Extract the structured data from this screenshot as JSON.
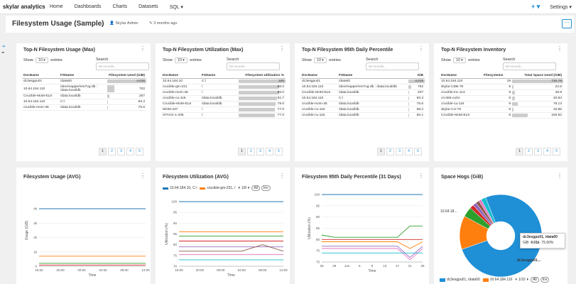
{
  "nav": {
    "logo": "skylar analytics",
    "items": [
      "Home",
      "Dashboards",
      "Charts",
      "Datasets",
      "SQL ▾"
    ],
    "plus": "+ ▾",
    "settings": "Settings ▾"
  },
  "header": {
    "title": "Filesystem Usage (Sample)",
    "owner": "Skylar Admin",
    "modified": "3 months ago"
  },
  "tables": {
    "controls": {
      "show": "Show",
      "entries_value": "10",
      "entries": "entries",
      "search": "Search",
      "search_placeholder": "50 records..."
    },
    "t1": {
      "title": "Top-N Filesystem Usage (Max)",
      "columns": [
        "DvcName",
        "FSName",
        "Filesystem Used (GiB)"
      ],
      "rows": [
        {
          "dvc": "dc3esgpu01",
          "fs": "/data00",
          "val": "4.01k",
          "pct": 100
        },
        {
          "dvc": "10.64.184.110",
          "fs": "/dev/mapper/em7vg-db : /data.local/db",
          "val": "702",
          "pct": 17.5
        },
        {
          "dvc": "Crucible-MoM-EL8",
          "fs": "/data.local/db",
          "val": "207",
          "pct": 5.2
        },
        {
          "dvc": "10.64.184.110",
          "fs": "C:\\",
          "val": "83.3",
          "pct": 2.1
        },
        {
          "dvc": "crucible-mom-36",
          "fs": "/data.local/db",
          "val": "75.6",
          "pct": 1.9
        }
      ],
      "pages": [
        "1",
        "2",
        "3",
        "4",
        "5"
      ]
    },
    "t2": {
      "title": "Top-N Filesystem Utilization (Max)",
      "columns": [
        "DvcName",
        "FSName",
        "Filesystem Utilization %"
      ],
      "rows": [
        {
          "dvc": "10.64.184.10",
          "fs": "C:\\",
          "val": "100",
          "pct": 100
        },
        {
          "dvc": "crucible-gm-231",
          "fs": "/",
          "val": "86.0",
          "pct": 86
        },
        {
          "dvc": "crucible-mom-36",
          "fs": "/",
          "val": "86.0",
          "pct": 86
        },
        {
          "dvc": "crucible-cu-116",
          "fs": "/data.local/db",
          "val": "81.7",
          "pct": 81.7
        },
        {
          "dvc": "Crucible-MoM-EL8",
          "fs": "/data.local/db",
          "val": "79.0",
          "pct": 79
        },
        {
          "dvc": "MOM-237",
          "fs": "/",
          "val": "77.0",
          "pct": 77
        },
        {
          "dvc": "STACK-1-235",
          "fs": "/",
          "val": "77.0",
          "pct": 77
        }
      ],
      "pages": [
        "1",
        "2",
        "3",
        "4",
        "5"
      ]
    },
    "t3": {
      "title": "Top-N Filesystem 95th Daily Percentile",
      "columns": [
        "DvcName",
        "FSName",
        "GiB"
      ],
      "rows": [
        {
          "dvc": "dc3esgpu01",
          "fs": "/data00",
          "val": "4.01k",
          "pct": 100
        },
        {
          "dvc": "10.64.184.110",
          "fs": "/dev/mapper/em7vg-db : /data.local/db",
          "val": "702",
          "pct": 17.5
        },
        {
          "dvc": "Crucible-MoM-EL8",
          "fs": "/data.local/db",
          "val": "207",
          "pct": 5.2
        },
        {
          "dvc": "10.64.184.110",
          "fs": "C:\\",
          "val": "83.3",
          "pct": 2.1
        },
        {
          "dvc": "crucible-mom-36",
          "fs": "/data.local/db",
          "val": "75.6",
          "pct": 1.9
        },
        {
          "dvc": "crucible-cu-116",
          "fs": "/data.local/db",
          "val": "68.2",
          "pct": 1.7
        },
        {
          "dvc": "crucible-cu-115",
          "fs": "/data.local/db",
          "val": "56.1",
          "pct": 1.4
        }
      ],
      "pages": [
        "1",
        "2",
        "3",
        "4",
        "5"
      ]
    },
    "t4": {
      "title": "Top-N Filesystem Inventory",
      "columns": [
        "DvcName",
        "Filesystems",
        "Total Space Used (GiB)"
      ],
      "rows": [
        {
          "dvc": "10.64.184.110",
          "fs": "18",
          "val": "720.78",
          "pct": 100
        },
        {
          "dvc": "skylar-CDB-78",
          "fs": "9",
          "val": "22.6",
          "pct": 3.1
        },
        {
          "dvc": "crucible-inc-113",
          "fs": "9",
          "val": "38.9",
          "pct": 5.4
        },
        {
          "dvc": "crc465-cu01",
          "fs": "9",
          "val": "40.84",
          "pct": 5.7
        },
        {
          "dvc": "crucible-cu-116",
          "fs": "9",
          "val": "78.13",
          "pct": 10.8
        },
        {
          "dvc": "skylar-CU-78",
          "fs": "9",
          "val": "15.85",
          "pct": 2.2
        },
        {
          "dvc": "Crucible-MoM-EL8",
          "fs": "9",
          "val": "220.92",
          "pct": 30.7
        }
      ],
      "pages": [
        "1",
        "2",
        "3",
        "4",
        "5"
      ]
    }
  },
  "charts": {
    "c1": {
      "title": "Filesystem Usage (AVG)",
      "chart_data": {
        "type": "line",
        "x": [
          "16:00",
          "20:00",
          "00:00",
          "04:00",
          "08:00",
          "12:00"
        ],
        "xlabel": "Time",
        "ylabel": "Usage (GiB)",
        "yticks": [
          "0",
          "1k",
          "2k",
          "3k",
          "4k"
        ],
        "ylim": [
          0,
          5000
        ],
        "series": [
          {
            "color": "#1f77b4",
            "values": [
              4010,
              4010,
              4010,
              4010,
              4010,
              4010
            ]
          },
          {
            "color": "#ff7f0e",
            "values": [
              702,
              702,
              702,
              702,
              702,
              702
            ]
          },
          {
            "color": "#2ca02c",
            "values": [
              207,
              207,
              207,
              207,
              207,
              207
            ]
          },
          {
            "color": "#d62728",
            "values": [
              83,
              83,
              83,
              83,
              83,
              83
            ]
          }
        ]
      }
    },
    "c2": {
      "title": "Filesystem Utilization (AVG)",
      "legend": [
        "10.64.184.10, C:\\",
        "crucible-gm-231, /"
      ],
      "legend_page": "1/8",
      "legend_all": "All",
      "legend_inv": "Inv",
      "chart_data": {
        "type": "line",
        "x": [
          "16:00",
          "20:00",
          "00:00",
          "04:00",
          "08:00",
          "12:00"
        ],
        "xlabel": "Time",
        "ylabel": "Utilization (%)",
        "yticks": [
          "70",
          "75",
          "80",
          "85",
          "90",
          "95",
          "100"
        ],
        "ylim": [
          70,
          100
        ],
        "series": [
          {
            "color": "#1f77b4",
            "values": [
              100,
              100,
              100,
              100,
              100,
              100
            ]
          },
          {
            "color": "#ff7f0e",
            "values": [
              86,
              86,
              86,
              86,
              86,
              86
            ]
          },
          {
            "color": "#2ca02c",
            "values": [
              84,
              84,
              84,
              84,
              84,
              84
            ]
          },
          {
            "color": "#d62728",
            "values": [
              81.7,
              81.7,
              81.7,
              81.7,
              81.7,
              81.7
            ]
          },
          {
            "color": "#9467bd",
            "values": [
              79,
              79,
              79,
              79,
              79,
              79
            ]
          },
          {
            "color": "#8c564b",
            "values": [
              77,
              77,
              77,
              77,
              80,
              77
            ]
          },
          {
            "color": "#e377c2",
            "values": [
              75.5,
              75.5,
              75.5,
              75.5,
              75.5,
              75.5
            ]
          },
          {
            "color": "#17becf",
            "values": [
              73,
              73,
              73,
              73,
              73,
              73
            ]
          }
        ]
      }
    },
    "c3": {
      "title": "Filesystem 95th Daily Percentile (31 Days)",
      "chart_data": {
        "type": "line",
        "x": [
          "25",
          "29",
          "Jun",
          "5",
          "9",
          "13",
          "17",
          "21",
          "25"
        ],
        "xlabel": "Time",
        "ylabel": "Utilization (%)",
        "yticks": [
          "70",
          "75",
          "80",
          "85",
          "90",
          "95",
          "100"
        ],
        "ylim": [
          70,
          100
        ],
        "series": [
          {
            "color": "#1f77b4",
            "values": [
              100,
              100,
              100,
              100,
              100,
              100,
              100,
              100,
              100
            ]
          },
          {
            "color": "#2ca02c",
            "values": [
              82,
              81,
              81,
              81,
              81,
              81,
              81,
              86,
              86
            ]
          },
          {
            "color": "#d62728",
            "values": [
              80,
              80,
              80,
              80,
              80,
              80,
              80,
              80,
              80
            ]
          },
          {
            "color": "#ff7f0e",
            "values": [
              79,
              79,
              79,
              79,
              79,
              79,
              79,
              76,
              79
            ]
          },
          {
            "color": "#9467bd",
            "values": [
              77,
              77,
              77,
              77,
              77,
              77,
              77,
              72,
              77
            ]
          },
          {
            "color": "#e377c2",
            "values": [
              76,
              76,
              76,
              76,
              76,
              76,
              76,
              71,
              76
            ]
          },
          {
            "color": "#17becf",
            "values": [
              74,
              74,
              74,
              74,
              74,
              74,
              74,
              74,
              74
            ]
          }
        ]
      }
    },
    "c4": {
      "title": "Space Hogs (GiB)",
      "label_small": "10.64.18...",
      "label_big": "dc3esgpu01...",
      "tooltip": {
        "name": "dc3esgpu01, /data00",
        "metric": "GiB",
        "value": "4.01k",
        "pct": "75.60%"
      },
      "legend": [
        "dc3esgpu01, /data00",
        "10.64.184.110"
      ],
      "legend_page": "1/10",
      "legend_all": "All",
      "legend_inv": "Inv",
      "chart_data": {
        "type": "pie",
        "categories": [
          "dc3esgpu01, /data00",
          "10.64.184.110",
          "Crucible-MoM-EL8",
          "10.64.184.110 C:",
          "crucible-mom-36",
          "crucible-cu-116",
          "crucible-cu-115",
          "other"
        ],
        "values": [
          4010,
          702,
          207,
          83,
          76,
          68,
          56,
          100
        ],
        "colors": [
          "#1f8fd6",
          "#ff7f0e",
          "#2ca02c",
          "#d62728",
          "#9467bd",
          "#8c564b",
          "#e377c2",
          "#17becf"
        ]
      }
    }
  }
}
